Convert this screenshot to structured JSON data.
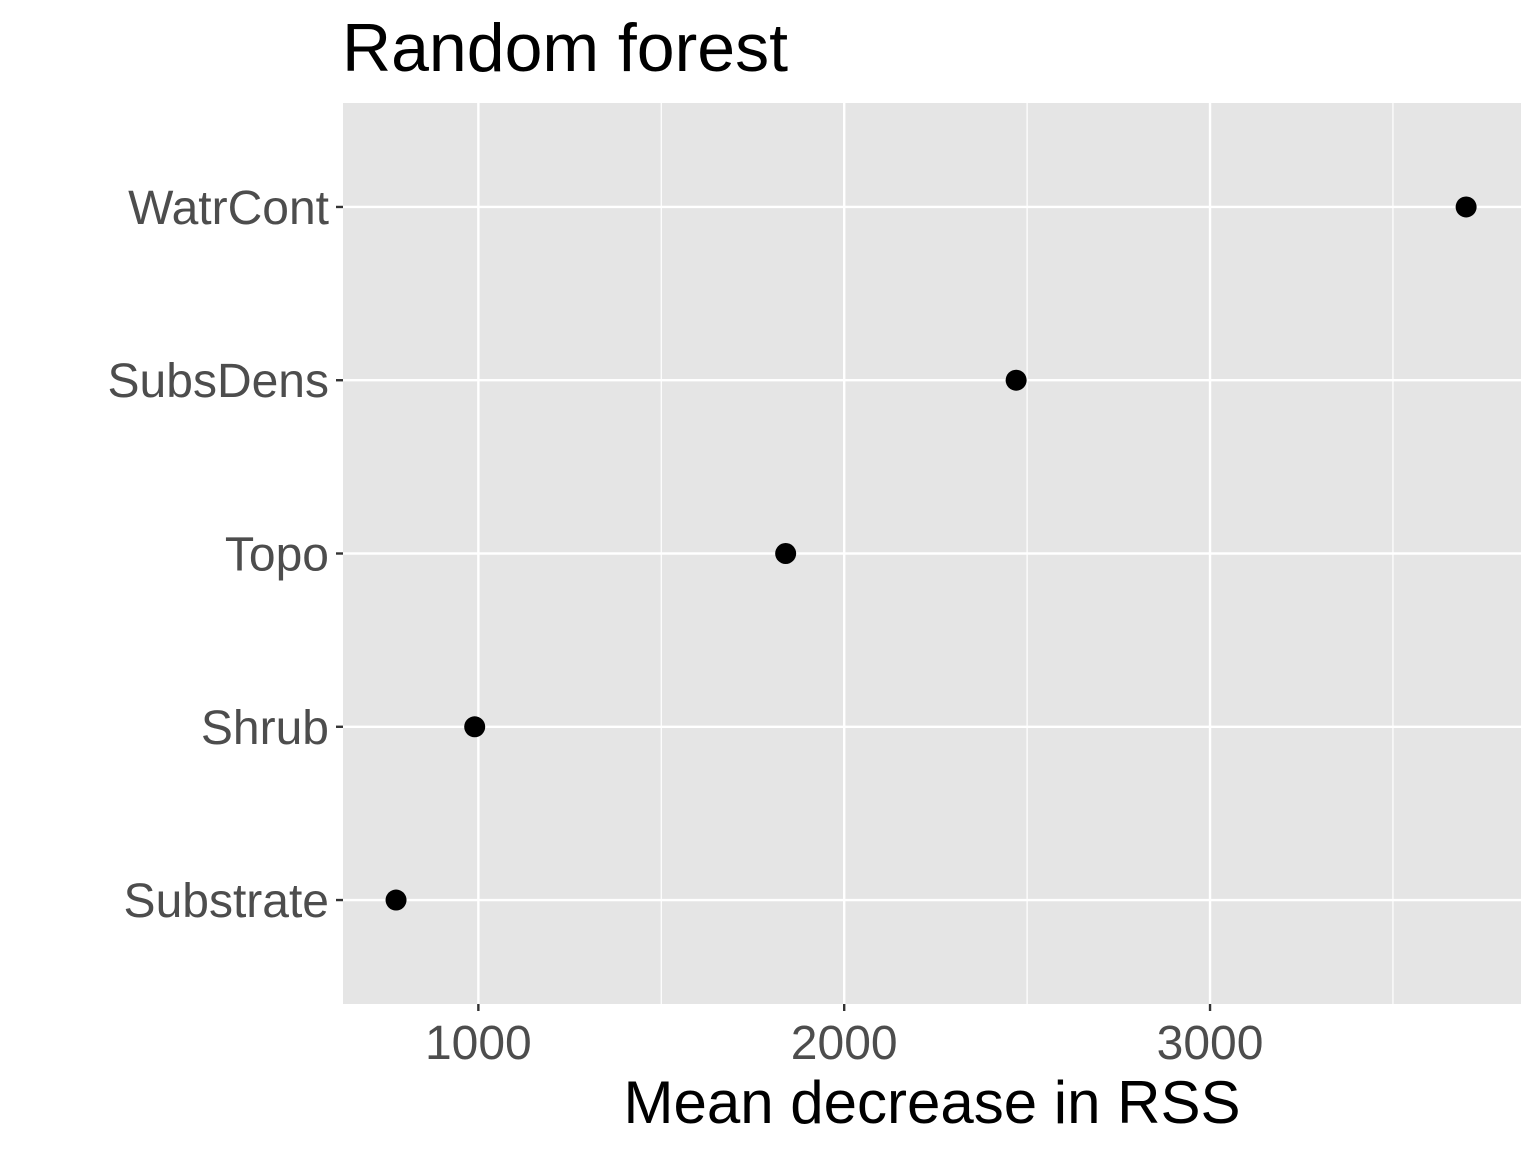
{
  "chart_data": {
    "type": "scatter",
    "title": "Random forest",
    "xlabel": "Mean decrease in RSS",
    "ylabel": "",
    "categories": [
      "Substrate",
      "Shrub",
      "Topo",
      "SubsDens",
      "WatrCont"
    ],
    "values": [
      775,
      990,
      1840,
      2470,
      3700
    ],
    "xlim": [
      630,
      3850
    ],
    "x_ticks": [
      1000,
      2000,
      3000
    ],
    "x_tick_labels": [
      "1000",
      "2000",
      "3000"
    ],
    "x_minor_ticks": [
      1500,
      2500,
      3500
    ],
    "grid": true,
    "legend": "none",
    "colors": {
      "panel": "#e5e5e5",
      "grid": "#ffffff",
      "point": "#000000",
      "tick_text": "#4d4d4d",
      "tick_mark": "#333333"
    }
  }
}
